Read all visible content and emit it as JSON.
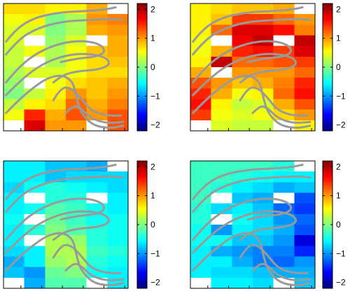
{
  "figure": {
    "colorbar": {
      "ticks": [
        2,
        1,
        0,
        -1,
        -2
      ],
      "tick_labels": [
        "2",
        "1",
        "0",
        "−1",
        "−2"
      ],
      "range": [
        -2.2,
        2.2
      ],
      "colormap": "jet"
    },
    "contour_color": "#9a9a9a",
    "missing_cell_color": "#ffffff"
  },
  "chart_data": [
    {
      "type": "heatmap",
      "panel": "top-left",
      "title": "",
      "xlabel": "",
      "ylabel": "",
      "zlim": [
        -2.2,
        2.2
      ],
      "grid": false,
      "values": [
        [
          0.7,
          0.7,
          0.6,
          0.6,
          0.9,
          null
        ],
        [
          0.5,
          0.6,
          0.0,
          0.2,
          1.0,
          1.1
        ],
        [
          0.4,
          0.4,
          0.0,
          0.2,
          0.9,
          1.0
        ],
        [
          0.4,
          null,
          0.1,
          0.4,
          null,
          0.9
        ],
        [
          0.3,
          0.5,
          0.2,
          0.5,
          0.8,
          0.9
        ],
        [
          0.3,
          null,
          0.2,
          0.5,
          0.7,
          0.8
        ],
        [
          0.2,
          0.4,
          0.4,
          0.5,
          0.7,
          0.7
        ],
        [
          0.1,
          null,
          0.5,
          0.7,
          0.8,
          0.9
        ],
        [
          0.0,
          0.3,
          0.6,
          1.0,
          0.8,
          1.0
        ],
        [
          0.3,
          0.6,
          0.7,
          1.2,
          0.9,
          1.1
        ],
        [
          0.5,
          1.5,
          0.9,
          1.3,
          1.0,
          1.3
        ],
        [
          null,
          1.8,
          1.0,
          1.0,
          null,
          1.3
        ]
      ]
    },
    {
      "type": "heatmap",
      "panel": "top-right",
      "title": "",
      "xlabel": "",
      "ylabel": "",
      "zlim": [
        -2.2,
        2.2
      ],
      "grid": false,
      "values": [
        [
          0.6,
          0.7,
          0.8,
          0.8,
          0.9,
          null
        ],
        [
          0.6,
          0.8,
          1.4,
          1.4,
          1.2,
          1.0
        ],
        [
          0.6,
          1.2,
          1.8,
          1.8,
          1.6,
          1.1
        ],
        [
          0.5,
          null,
          1.7,
          1.9,
          null,
          1.9
        ],
        [
          0.5,
          0.9,
          1.5,
          1.6,
          1.4,
          1.8
        ],
        [
          0.6,
          1.9,
          1.2,
          1.2,
          1.3,
          1.4
        ],
        [
          0.9,
          null,
          1.0,
          1.0,
          1.0,
          1.2
        ],
        [
          1.3,
          1.0,
          0.8,
          0.9,
          1.1,
          1.5
        ],
        [
          1.5,
          0.9,
          0.5,
          0.6,
          1.2,
          1.6
        ],
        [
          1.6,
          0.6,
          0.3,
          0.4,
          0.9,
          1.3
        ],
        [
          1.4,
          0.5,
          0.4,
          0.5,
          0.7,
          1.0
        ],
        [
          null,
          0.4,
          0.3,
          0.3,
          null,
          0.6
        ]
      ]
    },
    {
      "type": "heatmap",
      "panel": "bottom-left",
      "title": "",
      "xlabel": "",
      "ylabel": "",
      "zlim": [
        -2.2,
        2.2
      ],
      "grid": false,
      "values": [
        [
          -0.6,
          -0.6,
          -0.8,
          -0.8,
          -0.9,
          null
        ],
        [
          -0.6,
          -0.6,
          -0.8,
          -0.7,
          -0.7,
          -0.7
        ],
        [
          -0.7,
          -0.5,
          -0.4,
          -0.5,
          -0.6,
          -0.7
        ],
        [
          -0.6,
          null,
          -0.4,
          -0.4,
          null,
          -0.6
        ],
        [
          -0.6,
          -0.5,
          -0.2,
          -0.3,
          -0.5,
          -0.6
        ],
        [
          -0.5,
          null,
          -0.1,
          -0.3,
          -0.5,
          -0.5
        ],
        [
          -0.6,
          -0.4,
          0.0,
          -0.2,
          -0.4,
          -0.5
        ],
        [
          -0.6,
          null,
          0.2,
          0.1,
          -0.4,
          -0.5
        ],
        [
          -0.7,
          -0.6,
          0.2,
          0.2,
          -0.3,
          -0.4
        ],
        [
          -0.9,
          -0.6,
          0.1,
          0.2,
          -0.4,
          -0.5
        ],
        [
          -0.8,
          -1.0,
          -0.1,
          0.0,
          -0.5,
          -0.6
        ],
        [
          null,
          -0.9,
          -0.2,
          -0.2,
          null,
          -0.6
        ]
      ]
    },
    {
      "type": "heatmap",
      "panel": "bottom-right",
      "title": "",
      "xlabel": "",
      "ylabel": "",
      "zlim": [
        -2.2,
        2.2
      ],
      "grid": false,
      "values": [
        [
          -0.3,
          -0.3,
          -0.3,
          -0.3,
          -0.4,
          null
        ],
        [
          -0.3,
          -0.3,
          -0.4,
          -0.5,
          -0.6,
          -0.6
        ],
        [
          -0.3,
          -0.4,
          -0.6,
          -0.7,
          -0.9,
          -0.8
        ],
        [
          -0.3,
          null,
          -0.8,
          -0.9,
          null,
          -1.3
        ],
        [
          -0.4,
          -0.7,
          -0.6,
          -0.8,
          -1.2,
          -1.4
        ],
        [
          -0.4,
          null,
          -0.5,
          -0.7,
          -1.0,
          -1.2
        ],
        [
          -0.5,
          -1.0,
          -0.6,
          -0.7,
          -0.9,
          -1.3
        ],
        [
          -0.5,
          -0.5,
          -0.8,
          -0.8,
          -1.0,
          -1.8
        ],
        [
          -0.6,
          -0.9,
          -1.0,
          -1.1,
          -1.1,
          -1.5
        ],
        [
          -0.6,
          -0.6,
          -0.9,
          -1.1,
          -1.2,
          -1.0
        ],
        [
          -0.6,
          -0.7,
          -0.7,
          -0.8,
          -0.9,
          -0.9
        ],
        [
          null,
          -0.6,
          -0.6,
          -0.7,
          null,
          -0.8
        ]
      ]
    }
  ]
}
